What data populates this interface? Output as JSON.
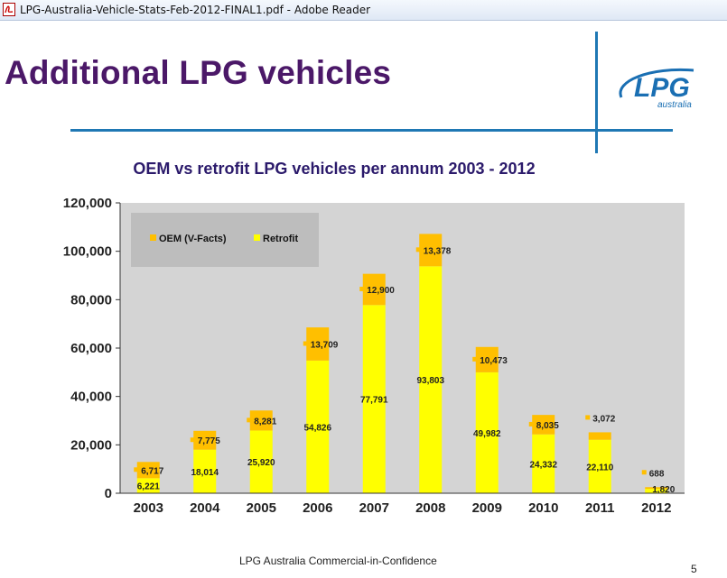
{
  "window": {
    "title": "LPG-Australia-Vehicle-Stats-Feb-2012-FINAL1.pdf - Adobe Reader"
  },
  "slide": {
    "title": "Additional LPG vehicles",
    "logo_text": "LPG",
    "logo_subtext": "australia",
    "footer": "LPG Australia Commercial-in-Confidence",
    "page_number": "5"
  },
  "colors": {
    "oem": "#ffbf00",
    "retrofit": "#ffff00",
    "title": "#4b1868",
    "chart_title": "#2b1a6b",
    "plot_bg": "#d4d4d4",
    "rule": "#1f78b4"
  },
  "chart_data": {
    "type": "bar",
    "stacked": true,
    "title": "OEM vs retrofit LPG vehicles per annum 2003 - 2012",
    "categories": [
      "2003",
      "2004",
      "2005",
      "2006",
      "2007",
      "2008",
      "2009",
      "2010",
      "2011",
      "2012"
    ],
    "series": [
      {
        "name": "Retrofit",
        "color": "#ffff00",
        "values": [
          6221,
          18014,
          25920,
          54826,
          77791,
          93803,
          49982,
          24332,
          22110,
          1820
        ],
        "labels": [
          "6,221",
          "18,014",
          "25,920",
          "54,826",
          "77,791",
          "93,803",
          "49,982",
          "24,332",
          "22,110",
          "1,820"
        ]
      },
      {
        "name": "OEM (V-Facts)",
        "color": "#ffbf00",
        "values": [
          6717,
          7775,
          8281,
          13709,
          12900,
          13378,
          10473,
          8035,
          3072,
          688
        ],
        "labels": [
          "6,717",
          "7,775",
          "8,281",
          "13,709",
          "12,900",
          "13,378",
          "10,473",
          "8,035",
          "3,072",
          "688"
        ]
      }
    ],
    "ylim": [
      0,
      120000
    ],
    "yticks": [
      0,
      20000,
      40000,
      60000,
      80000,
      100000,
      120000
    ],
    "ytick_labels": [
      "0",
      "20,000",
      "40,000",
      "60,000",
      "80,000",
      "100,000",
      "120,000"
    ],
    "legend": {
      "position": "top-left",
      "entries": [
        "OEM (V-Facts)",
        "Retrofit"
      ]
    },
    "grid": false
  }
}
